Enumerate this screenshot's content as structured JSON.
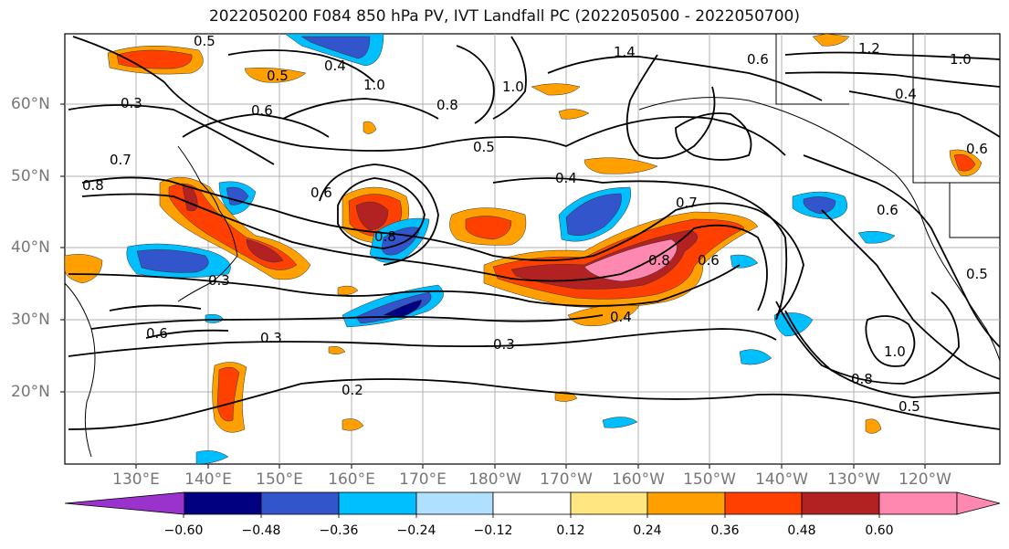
{
  "title": "2022050200 F084 850 hPa PV, IVT Landfall PC (2022050500 - 2022050700)",
  "lat_labels": [
    "60°N",
    "50°N",
    "40°N",
    "30°N",
    "20°N"
  ],
  "lon_labels": [
    "130°E",
    "140°E",
    "150°E",
    "160°E",
    "170°E",
    "180°W",
    "170°W",
    "160°W",
    "150°W",
    "140°W",
    "130°W",
    "120°W"
  ],
  "contour_labels": [
    "0.5",
    "0.4",
    "0.5",
    "0.3",
    "0.6",
    "1.0",
    "1.4",
    "1.0",
    "0.6",
    "0.8",
    "0.7",
    "0.8",
    "0.5",
    "0.4",
    "0.6",
    "0.7",
    "0.8",
    "0.8",
    "0.6",
    "0.4",
    "0.3",
    "0.6",
    "0.3",
    "0.2",
    "0.3",
    "1.0",
    "0.8",
    "0.5",
    "0.6",
    "1.2",
    "1.0",
    "0.4",
    "0.6",
    "0.5"
  ],
  "colorbar": {
    "tick_labels": [
      "−0.60",
      "−0.48",
      "−0.36",
      "−0.24",
      "−0.12",
      "0.12",
      "0.24",
      "0.36",
      "0.48",
      "0.60"
    ],
    "colors": [
      "#9933cc",
      "#000080",
      "#3355cc",
      "#00bfff",
      "#b0e0ff",
      "#ffffff",
      "#ffe680",
      "#ffa000",
      "#ff4000",
      "#b22222",
      "#ff88b0"
    ]
  },
  "colors": {
    "land": "#000000",
    "grid": "#b0b0b0",
    "contour": "#000000"
  }
}
